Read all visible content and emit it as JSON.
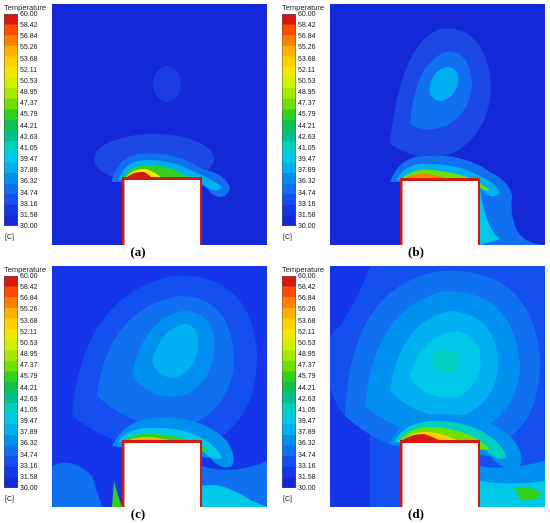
{
  "legend": {
    "title": "Temperature",
    "unit": "[C]",
    "ticks": [
      "60.00",
      "58.42",
      "56.84",
      "55.26",
      "53.68",
      "52.11",
      "50.53",
      "48.95",
      "47.37",
      "45.79",
      "44.21",
      "42.63",
      "41.05",
      "39.47",
      "37.89",
      "36.32",
      "34.74",
      "33.16",
      "31.58",
      "30.00"
    ],
    "colors": [
      "#d21a10",
      "#ff4a00",
      "#ff8000",
      "#ffb000",
      "#ffd000",
      "#f0e800",
      "#d0f000",
      "#a8e800",
      "#70e000",
      "#30d020",
      "#10c050",
      "#00c090",
      "#00d0c0",
      "#00c8e8",
      "#00b0f0",
      "#0090f0",
      "#1070f0",
      "#1450f0",
      "#1436e8",
      "#1428d8"
    ]
  },
  "panels": [
    {
      "id": "a",
      "caption": "(a)"
    },
    {
      "id": "b",
      "caption": "(b)"
    },
    {
      "id": "c",
      "caption": "(c)"
    },
    {
      "id": "d",
      "caption": "(d)"
    }
  ]
}
